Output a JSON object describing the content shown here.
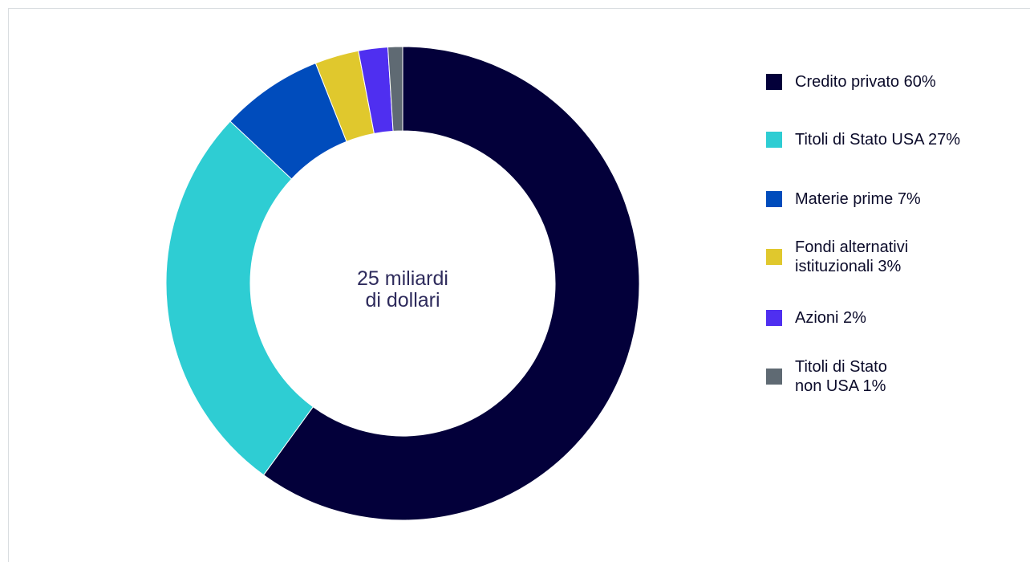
{
  "chart_data": {
    "type": "pie",
    "variant": "donut",
    "center_label": [
      "25 miliardi",
      "di dollari"
    ],
    "slices": [
      {
        "name": "Credito privato",
        "value": 60,
        "label": "Credito privato 60%",
        "color": "#03003a"
      },
      {
        "name": "Titoli di Stato USA",
        "value": 27,
        "label": "Titoli di Stato USA 27%",
        "color": "#2ecdd3"
      },
      {
        "name": "Materie prime",
        "value": 7,
        "label": "Materie prime 7%",
        "color": "#004cbc"
      },
      {
        "name": "Fondi alternativi istituzionali",
        "value": 3,
        "label": "Fondi alternativi\nistituzionali 3%",
        "color": "#e0c82d"
      },
      {
        "name": "Azioni",
        "value": 2,
        "label": "Azioni 2%",
        "color": "#4f2ff0"
      },
      {
        "name": "Titoli di Stato non USA",
        "value": 1,
        "label": "Titoli di Stato\nnon USA 1%",
        "color": "#5f6a73"
      }
    ],
    "legend_position": "right"
  }
}
